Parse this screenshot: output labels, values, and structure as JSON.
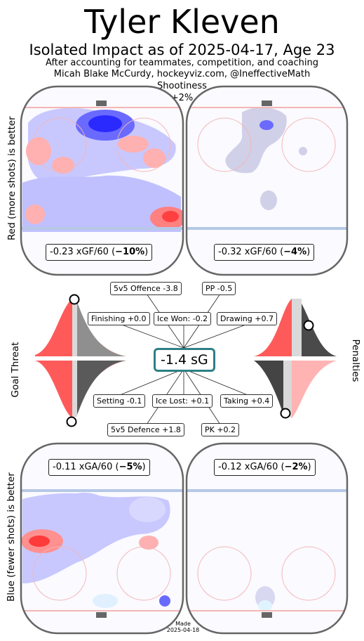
{
  "header": {
    "title": "Tyler Kleven",
    "subtitle": "Isolated Impact as of 2025-04-17, Age 23",
    "note1": "After accounting for teammates, competition, and coaching",
    "note2": "Micah Blake McCurdy, hockeyviz.com, @IneffectiveMath",
    "shootiness_label": "Shootiness",
    "shootiness_value": "+2%"
  },
  "side_labels": {
    "top": "Red (more shots) is better",
    "bottom": "Blue (fewer shots) is better",
    "goal_threat": "Goal Threat",
    "penalties": "Penalties"
  },
  "rinks": {
    "top_left_text": "-0.23 xGF/60 (",
    "top_left_bold": "−10%",
    "top_right_text": "-0.32 xGF/60 (",
    "top_right_bold": "−4%",
    "bottom_left_text": "-0.11 xGA/60 (",
    "bottom_left_bold": "−5%",
    "bottom_right_text": "-0.12 xGA/60 (",
    "bottom_right_bold": "−2%",
    "close_paren": ")"
  },
  "chart_data": {
    "type": "table",
    "total": {
      "label": "sG",
      "value": -1.4,
      "display": "-1.4 sG"
    },
    "components": [
      {
        "name": "5v5 Offence",
        "value": -3.8,
        "display": "5v5 Offence -3.8"
      },
      {
        "name": "PP",
        "value": -0.5,
        "display": "PP -0.5"
      },
      {
        "name": "Finishing",
        "value": 0.0,
        "display": "Finishing +0.0"
      },
      {
        "name": "Ice Won:",
        "value": -0.2,
        "display": "Ice Won: -0.2"
      },
      {
        "name": "Drawing",
        "value": 0.7,
        "display": "Drawing +0.7"
      },
      {
        "name": "Setting",
        "value": -0.1,
        "display": "Setting -0.1"
      },
      {
        "name": "Ice Lost:",
        "value": 0.1,
        "display": "Ice Lost: +0.1"
      },
      {
        "name": "Taking",
        "value": 0.4,
        "display": "Taking +0.4"
      },
      {
        "name": "5v5 Defence",
        "value": 1.8,
        "display": "5v5 Defence +1.8"
      },
      {
        "name": "PK",
        "value": 0.2,
        "display": "PK +0.2"
      }
    ],
    "rink_metrics": [
      {
        "panel": "5v5 offence",
        "xgf_per60": -0.23,
        "pct": -10
      },
      {
        "panel": "PP offence",
        "xgf_per60": -0.32,
        "pct": -4
      },
      {
        "panel": "5v5 defence",
        "xga_per60": -0.11,
        "pct": -5
      },
      {
        "panel": "PK defence",
        "xga_per60": -0.12,
        "pct": -2
      }
    ],
    "shootiness_pct": 2,
    "colors": {
      "better_offence": "#ff4d4d",
      "better_defence": "#3d3dff",
      "total_box": "#2f7f86"
    }
  },
  "footer": {
    "made_label": "Made",
    "made_date": "2025-04-18"
  }
}
